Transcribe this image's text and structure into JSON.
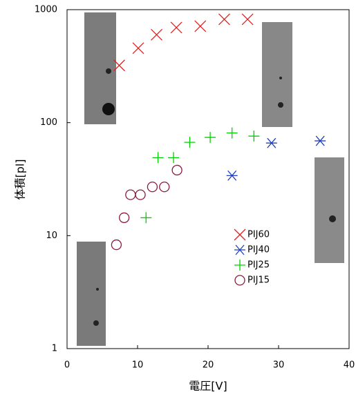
{
  "chart_data": {
    "type": "scatter",
    "xlabel": "電圧[V]",
    "ylabel": "体積[pl]",
    "xlim": [
      0,
      40
    ],
    "xticks": [
      0,
      10,
      20,
      30,
      40
    ],
    "ylim": [
      1,
      1000
    ],
    "yticks": [
      1,
      10,
      100,
      1000
    ],
    "log_y": true,
    "legend": "lower right",
    "series": [
      {
        "name": "PIJ60",
        "color": "#e0201f",
        "marker": "x",
        "x": [
          7.4,
          10.1,
          12.7,
          15.5,
          18.9,
          22.3,
          25.6
        ],
        "values": [
          321,
          456,
          600,
          694,
          714,
          822,
          822
        ]
      },
      {
        "name": "PIJ40",
        "color": "#1f3fc0",
        "marker": "asterisk",
        "x": [
          23.4,
          29.0,
          35.9
        ],
        "values": [
          34,
          66,
          69
        ]
      },
      {
        "name": "PIJ25",
        "color": "#00d000",
        "marker": "plus",
        "x": [
          11.2,
          12.9,
          15.1,
          17.4,
          20.3,
          23.4,
          26.5
        ],
        "values": [
          14.4,
          49,
          49,
          67,
          74,
          81,
          76
        ]
      },
      {
        "name": "PIJ15",
        "color": "#8b1a3b",
        "marker": "circle",
        "x": [
          7.0,
          8.1,
          9.0,
          10.4,
          12.1,
          13.8,
          15.6
        ],
        "values": [
          8.3,
          14.4,
          23,
          23,
          27,
          27,
          38
        ]
      }
    ]
  }
}
